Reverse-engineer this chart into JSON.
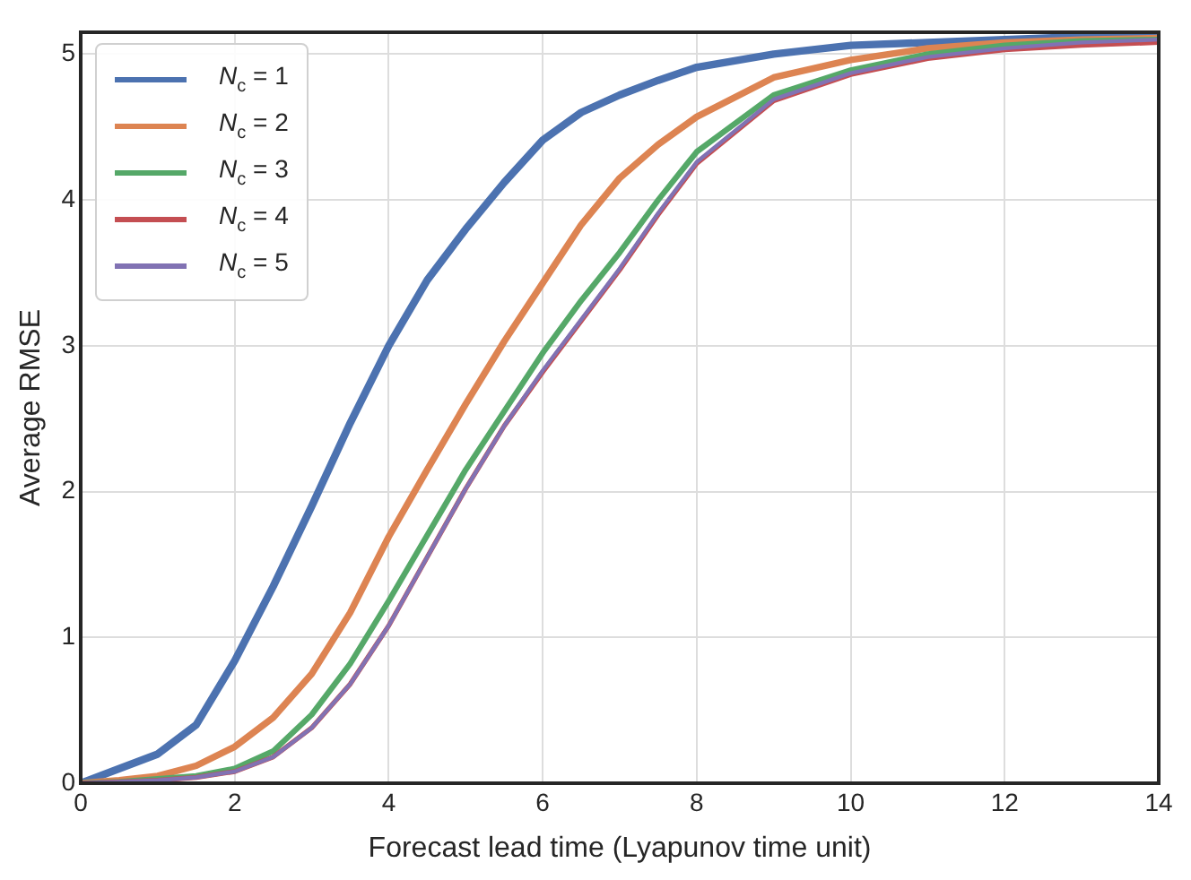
{
  "chart_data": {
    "type": "line",
    "xlabel": "Forecast lead time (Lyapunov time unit)",
    "ylabel": "Average RMSE",
    "x": [
      0,
      0.5,
      1,
      1.5,
      2,
      2.5,
      3,
      3.5,
      4,
      4.5,
      5,
      5.5,
      6,
      6.5,
      7,
      7.5,
      8,
      9,
      10,
      11,
      12,
      13,
      14
    ],
    "series": [
      {
        "name": "N$_{c}$ = 1",
        "color": "#4c72b0",
        "values": [
          0,
          0.1,
          0.2,
          0.4,
          0.84,
          1.35,
          1.9,
          2.47,
          3.0,
          3.45,
          3.8,
          4.12,
          4.41,
          4.6,
          4.72,
          4.82,
          4.91,
          5.0,
          5.06,
          5.08,
          5.1,
          5.12,
          5.12
        ]
      },
      {
        "name": "N$_{c}$ = 2",
        "color": "#dd8452",
        "values": [
          0,
          0.02,
          0.05,
          0.12,
          0.25,
          0.45,
          0.75,
          1.17,
          1.69,
          2.15,
          2.6,
          3.03,
          3.43,
          3.83,
          4.15,
          4.38,
          4.57,
          4.84,
          4.96,
          5.04,
          5.08,
          5.1,
          5.11
        ]
      },
      {
        "name": "N$_{c}$ = 3",
        "color": "#55a868",
        "values": [
          0,
          0.01,
          0.03,
          0.05,
          0.1,
          0.22,
          0.47,
          0.82,
          1.25,
          1.7,
          2.15,
          2.55,
          2.95,
          3.31,
          3.64,
          4.0,
          4.33,
          4.72,
          4.89,
          5.0,
          5.06,
          5.09,
          5.1
        ]
      },
      {
        "name": "N$_{c}$ = 4",
        "color": "#c44e52",
        "values": [
          0,
          0.01,
          0.02,
          0.04,
          0.08,
          0.18,
          0.38,
          0.68,
          1.08,
          1.55,
          2.02,
          2.45,
          2.82,
          3.17,
          3.52,
          3.9,
          4.25,
          4.68,
          4.86,
          4.97,
          5.03,
          5.06,
          5.08
        ]
      },
      {
        "name": "N$_{c}$ = 5",
        "color": "#8172b3",
        "values": [
          0,
          0.01,
          0.02,
          0.04,
          0.08,
          0.18,
          0.38,
          0.68,
          1.08,
          1.55,
          2.02,
          2.45,
          2.83,
          3.18,
          3.53,
          3.91,
          4.26,
          4.69,
          4.87,
          4.98,
          5.04,
          5.08,
          5.1
        ]
      }
    ],
    "xlim": [
      0,
      14
    ],
    "xticks": [
      0,
      2,
      4,
      6,
      8,
      10,
      12,
      14
    ],
    "ylim": [
      0,
      5.15
    ],
    "yticks": [
      0,
      1,
      2,
      3,
      4,
      5
    ],
    "grid": true,
    "legend": "top left",
    "marker": "none",
    "line_style": "solid"
  }
}
